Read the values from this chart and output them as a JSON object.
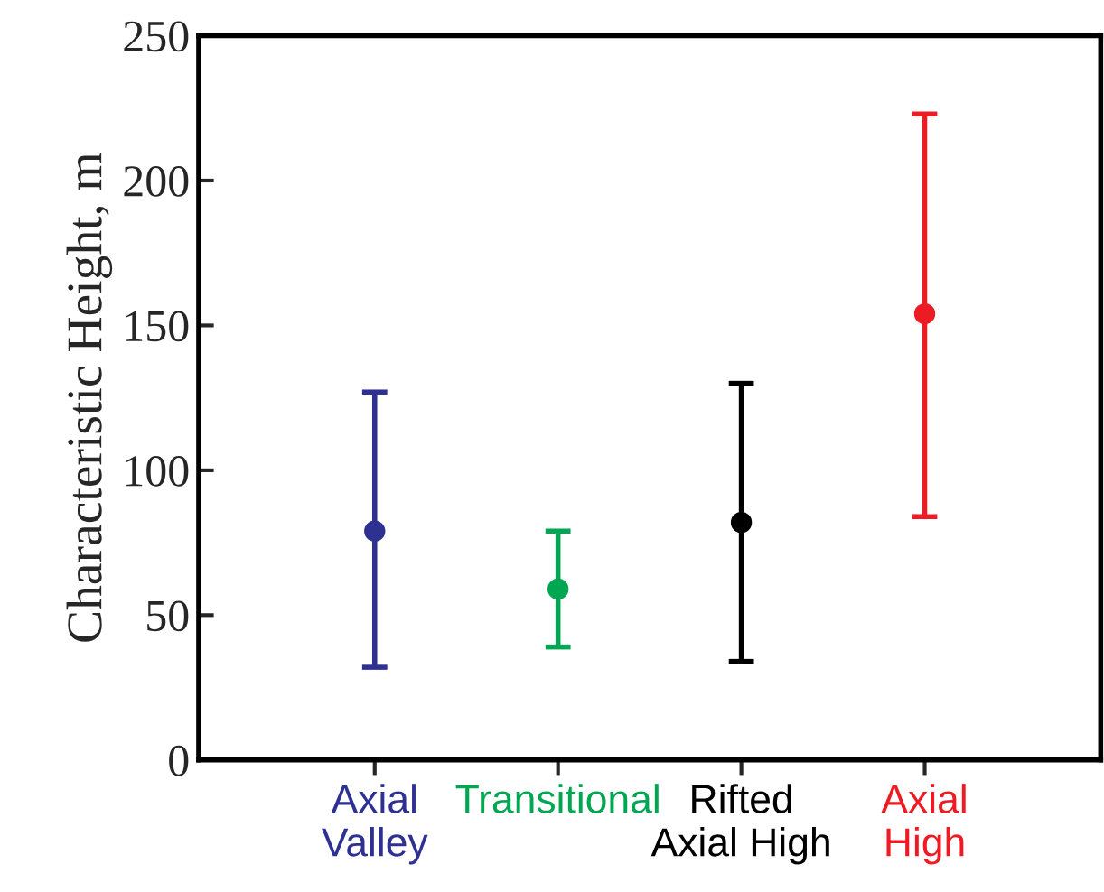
{
  "chart_data": {
    "type": "scatter",
    "ylabel": "Characteristic Height, m",
    "categories": [
      "Axial\nValley",
      "Transitional",
      "Rifted\nAxial High",
      "Axial\nHigh"
    ],
    "values": [
      79,
      59,
      82,
      154
    ],
    "errors": [
      [
        32,
        127
      ],
      [
        39,
        79
      ],
      [
        34,
        130
      ],
      [
        84,
        223
      ]
    ],
    "colors": [
      "#2e3192",
      "#00a651",
      "#000000",
      "#ed1c24"
    ],
    "ylim": [
      0,
      250
    ],
    "yticks": [
      0,
      50,
      100,
      150,
      200,
      250
    ],
    "marker": "circle",
    "grid": false,
    "legend": false
  }
}
